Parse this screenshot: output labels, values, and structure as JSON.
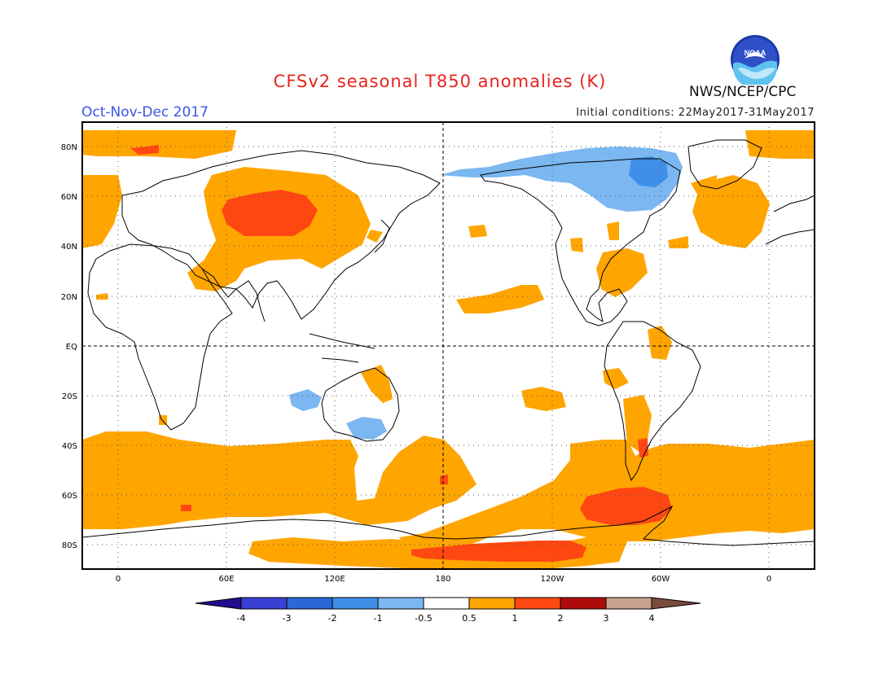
{
  "header": {
    "title": "CFSv2 seasonal T850 anomalies (K)",
    "season": "Oct-Nov-Dec 2017",
    "initial_conditions": "Initial conditions: 22May2017-31May2017",
    "agency": "NWS/NCEP/CPC",
    "logo_text": "NOAA"
  },
  "axes": {
    "lat_labels": [
      "80N",
      "60N",
      "40N",
      "20N",
      "EQ",
      "20S",
      "40S",
      "60S",
      "80S"
    ],
    "lon_labels": [
      "0",
      "60E",
      "120E",
      "180",
      "120W",
      "60W",
      "0"
    ]
  },
  "colorbar": {
    "labels": [
      "-4",
      "-3",
      "-2",
      "-1",
      "-0.5",
      "0.5",
      "1",
      "2",
      "3",
      "4"
    ],
    "colors": [
      "#230d8f",
      "#3a3fd6",
      "#2968d6",
      "#3f8fe8",
      "#7bb7f0",
      "#ffffff",
      "#ffa500",
      "#ff4712",
      "#b00b0b",
      "#c8a28f",
      "#7a4a3e"
    ]
  },
  "colors": {
    "warm1": "#ffa500",
    "warm2": "#ff4712",
    "cool1": "#7bb7f0",
    "cool2": "#3f8fe8",
    "title": "#e8231e",
    "season": "#3a55e6"
  }
}
